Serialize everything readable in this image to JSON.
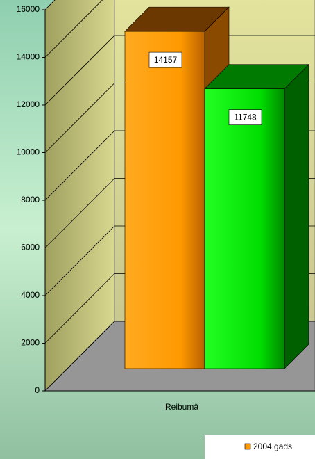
{
  "chart_data": {
    "type": "bar3d",
    "categories": [
      "Reibumā"
    ],
    "series": [
      {
        "name": "2004.gads",
        "color": "#ff9900",
        "values": [
          14157
        ]
      },
      {
        "color": "#00ee00",
        "values": [
          11748
        ]
      }
    ],
    "ylim": [
      0,
      16000
    ],
    "yticks": [
      0,
      2000,
      4000,
      6000,
      8000,
      10000,
      12000,
      14000,
      16000
    ],
    "grid": true,
    "legend": "bottom-right"
  }
}
